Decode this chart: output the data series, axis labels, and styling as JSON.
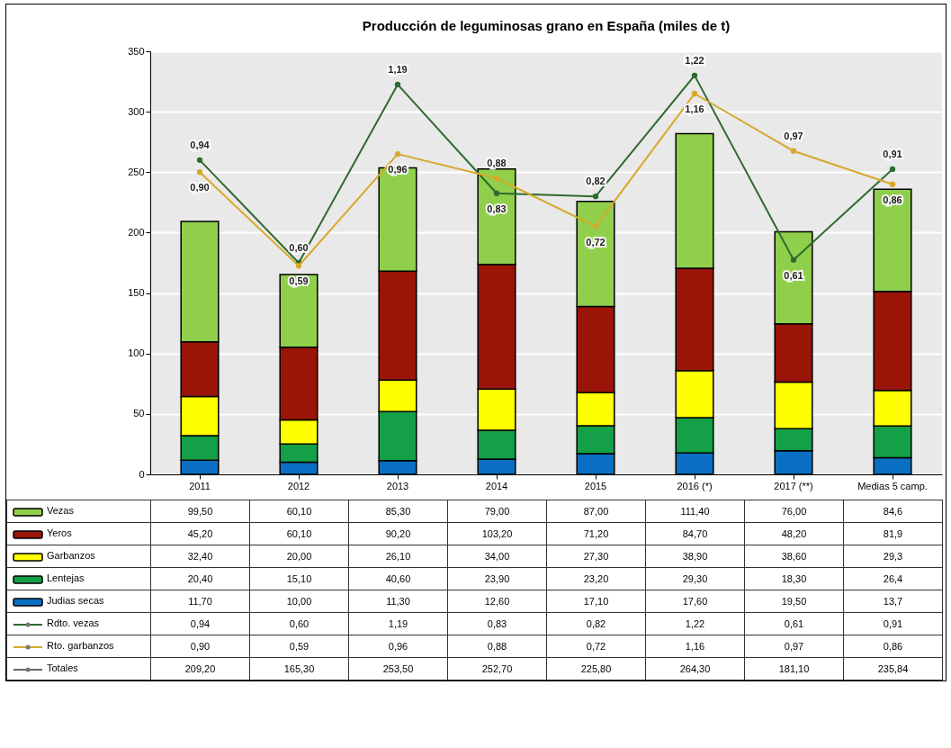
{
  "chart_data": {
    "type": "bar",
    "title": "Producción de leguminosas grano en España  (miles de t)",
    "categories": [
      "2011",
      "2012",
      "2013",
      "2014",
      "2015",
      "2016 (*)",
      "2017 (**)",
      "Medias 5 camp."
    ],
    "stacked": true,
    "ylim": [
      0,
      350
    ],
    "yticks": [
      0,
      50,
      100,
      150,
      200,
      250,
      300,
      350
    ],
    "y2lim": [
      -0.1,
      1.3
    ],
    "grid": "y",
    "legend": "bottom",
    "marker": "circle",
    "series": [
      {
        "name": "Judias secas",
        "color": "#0a6fc2",
        "values": [
          11.7,
          10.0,
          11.3,
          12.6,
          17.1,
          17.6,
          19.5,
          13.7
        ],
        "value_labels": [
          "11,70",
          "10,00",
          "11,30",
          "12,60",
          "17,10",
          "17,60",
          "19,50",
          "13,7"
        ]
      },
      {
        "name": "Lentejas",
        "color": "#14a046",
        "values": [
          20.4,
          15.1,
          40.6,
          23.9,
          23.2,
          29.3,
          18.3,
          26.4
        ],
        "value_labels": [
          "20,40",
          "15,10",
          "40,60",
          "23,90",
          "23,20",
          "29,30",
          "18,30",
          "26,4"
        ]
      },
      {
        "name": "Garbanzos",
        "color": "#ffff00",
        "values": [
          32.4,
          20.0,
          26.1,
          34.0,
          27.3,
          38.9,
          38.6,
          29.3
        ],
        "value_labels": [
          "32,40",
          "20,00",
          "26,10",
          "34,00",
          "27,30",
          "38,90",
          "38,60",
          "29,3"
        ]
      },
      {
        "name": "Yeros",
        "color": "#9a1408",
        "values": [
          45.2,
          60.1,
          90.2,
          103.2,
          71.2,
          84.7,
          48.2,
          81.9
        ],
        "value_labels": [
          "45,20",
          "60,10",
          "90,20",
          "103,20",
          "71,20",
          "84,70",
          "48,20",
          "81,9"
        ]
      },
      {
        "name": "Vezas",
        "color": "#8fcf4c",
        "values": [
          99.5,
          60.1,
          85.3,
          79.0,
          87.0,
          111.4,
          76.0,
          84.6
        ],
        "value_labels": [
          "99,50",
          "60,10",
          "85,30",
          "79,00",
          "87,00",
          "111,40",
          "76,00",
          "84,6"
        ]
      },
      {
        "name": "Rdto. vezas",
        "type": "line",
        "axis": "y2",
        "color": "#2f6a2f",
        "values": [
          0.94,
          0.6,
          1.19,
          0.83,
          0.82,
          1.22,
          0.61,
          0.91
        ],
        "value_labels": [
          "0,94",
          "0,60",
          "1,19",
          "0,83",
          "0,82",
          "1,22",
          "0,61",
          "0,91"
        ]
      },
      {
        "name": "Rto. garbanzos",
        "type": "line",
        "axis": "y2",
        "color": "#d6a92a",
        "values": [
          0.9,
          0.59,
          0.96,
          0.88,
          0.72,
          1.16,
          0.97,
          0.86
        ],
        "value_labels": [
          "0,90",
          "0,59",
          "0,96",
          "0,88",
          "0,72",
          "1,16",
          "0,97",
          "0,86"
        ]
      }
    ],
    "annotations": [
      "Totales",
      "209,20",
      "165,30",
      "253,50",
      "252,70",
      "225,80",
      "264,30",
      "181,10",
      "235,84"
    ]
  }
}
